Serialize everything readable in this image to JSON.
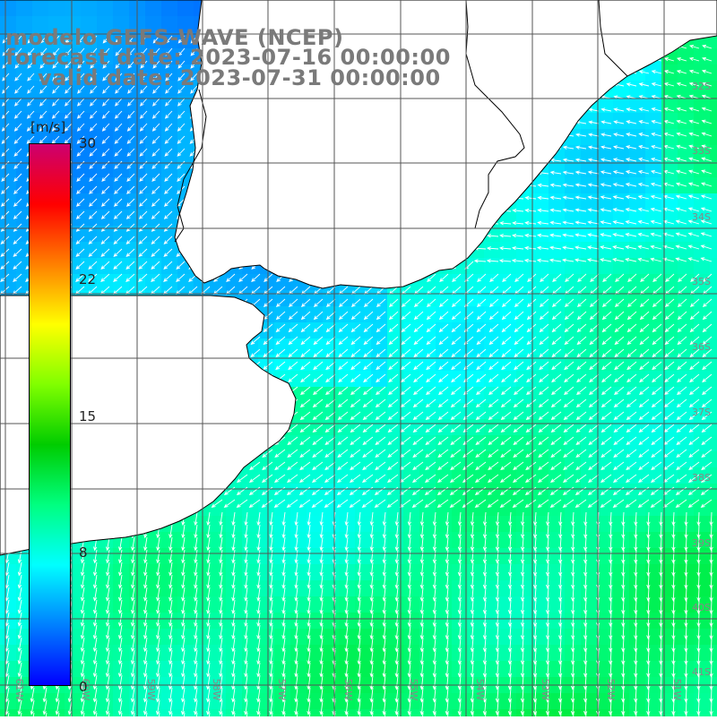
{
  "title": {
    "line1": "modelo GEFS-WAVE (NCEP)",
    "line2": "forecast date: 2023-07-16 00:00:00",
    "line3": "valid date: 2023-07-31 00:00:00"
  },
  "colorbar": {
    "unit": "[m/s]",
    "ticks": [
      "30",
      "22",
      "15",
      "8",
      "0"
    ],
    "range": [
      0,
      30
    ],
    "colors": [
      "#0000ff",
      "#0080ff",
      "#00ffff",
      "#00ff80",
      "#00cc00",
      "#80ff00",
      "#ffff00",
      "#ff8000",
      "#ff0000",
      "#cc0070"
    ]
  },
  "map": {
    "lat_labels": [
      "32S",
      "33S",
      "34S",
      "35S",
      "36S",
      "37S",
      "38S",
      "39S",
      "40S",
      "41S"
    ],
    "lon_labels": [
      "61W",
      "60W",
      "59W",
      "58W",
      "57W",
      "56W",
      "55W",
      "54W",
      "53W",
      "52W",
      "51W"
    ],
    "colors": {
      "land": "#ffffff",
      "coast": "#000000",
      "grid": "#555555",
      "arrow": "#ffffff"
    },
    "wind_direction": "from north-east, towards south-west",
    "wind_speed_range_ms": [
      5,
      12
    ]
  }
}
